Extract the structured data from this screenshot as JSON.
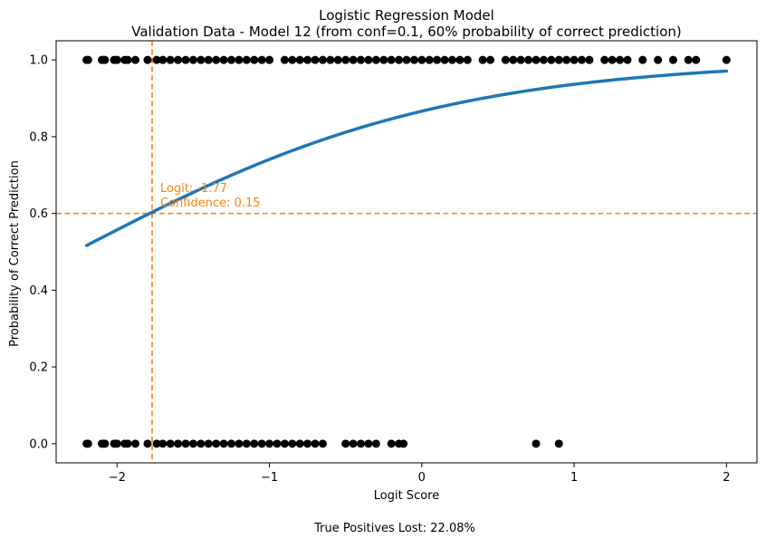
{
  "chart_data": {
    "type": "scatter",
    "title": "Logistic Regression Model",
    "subtitle": "Validation Data - Model 12 (from conf=0.1, 60% probability of correct prediction)",
    "xlabel": "Logit Score",
    "ylabel": "Probability of Correct Prediction",
    "xlim": [
      -2.4,
      2.2
    ],
    "ylim": [
      -0.05,
      1.05
    ],
    "x_ticks": [
      -2,
      -1,
      0,
      1,
      2
    ],
    "x_tick_labels": [
      "−2",
      "−1",
      "0",
      "1",
      "2"
    ],
    "y_ticks": [
      0.0,
      0.2,
      0.4,
      0.6,
      0.8,
      1.0
    ],
    "y_tick_labels": [
      "0.0",
      "0.2",
      "0.4",
      "0.6",
      "0.8",
      "1.0"
    ],
    "grid": false,
    "colors": {
      "points": "#000000",
      "curve": "#1f77b4",
      "threshold": "#ff7f0e"
    },
    "series": [
      {
        "kind": "points",
        "y": 1,
        "x": [
          -2.2,
          -2.19,
          -2.1,
          -2.09,
          -2.08,
          -2.02,
          -2.0,
          -1.95,
          -1.93,
          -1.88,
          -1.8,
          -1.74,
          -1.7,
          -1.65,
          -1.6,
          -1.55,
          -1.5,
          -1.45,
          -1.4,
          -1.35,
          -1.3,
          -1.25,
          -1.2,
          -1.15,
          -1.1,
          -1.05,
          -1.0,
          -0.9,
          -0.85,
          -0.8,
          -0.75,
          -0.7,
          -0.65,
          -0.6,
          -0.55,
          -0.5,
          -0.45,
          -0.4,
          -0.35,
          -0.3,
          -0.25,
          -0.2,
          -0.15,
          -0.1,
          -0.05,
          0.0,
          0.05,
          0.1,
          0.15,
          0.2,
          0.25,
          0.3,
          0.4,
          0.45,
          0.55,
          0.6,
          0.65,
          0.7,
          0.75,
          0.8,
          0.85,
          0.9,
          0.95,
          1.0,
          1.05,
          1.1,
          1.2,
          1.25,
          1.3,
          1.35,
          1.45,
          1.55,
          1.65,
          1.75,
          1.8,
          2.0
        ]
      },
      {
        "kind": "points",
        "y": 0,
        "x": [
          -2.2,
          -2.19,
          -2.1,
          -2.09,
          -2.08,
          -2.02,
          -2.0,
          -1.95,
          -1.93,
          -1.88,
          -1.8,
          -1.74,
          -1.7,
          -1.65,
          -1.6,
          -1.55,
          -1.5,
          -1.45,
          -1.4,
          -1.35,
          -1.3,
          -1.25,
          -1.2,
          -1.15,
          -1.1,
          -1.05,
          -1.0,
          -0.95,
          -0.9,
          -0.85,
          -0.8,
          -0.75,
          -0.7,
          -0.65,
          -0.5,
          -0.45,
          -0.4,
          -0.35,
          -0.3,
          -0.2,
          -0.15,
          -0.12,
          0.75,
          0.9
        ]
      }
    ],
    "curve": {
      "kind": "logistic",
      "intercept": 1.87,
      "slope": 0.82,
      "x_range": [
        -2.2,
        2.0
      ]
    },
    "threshold": {
      "x": -1.77,
      "y": 0.6
    },
    "annotation": {
      "line1": "Logit: -1.77",
      "line2": "Confidence: 0.15"
    },
    "footer": "True Positives Lost: 22.08%"
  }
}
